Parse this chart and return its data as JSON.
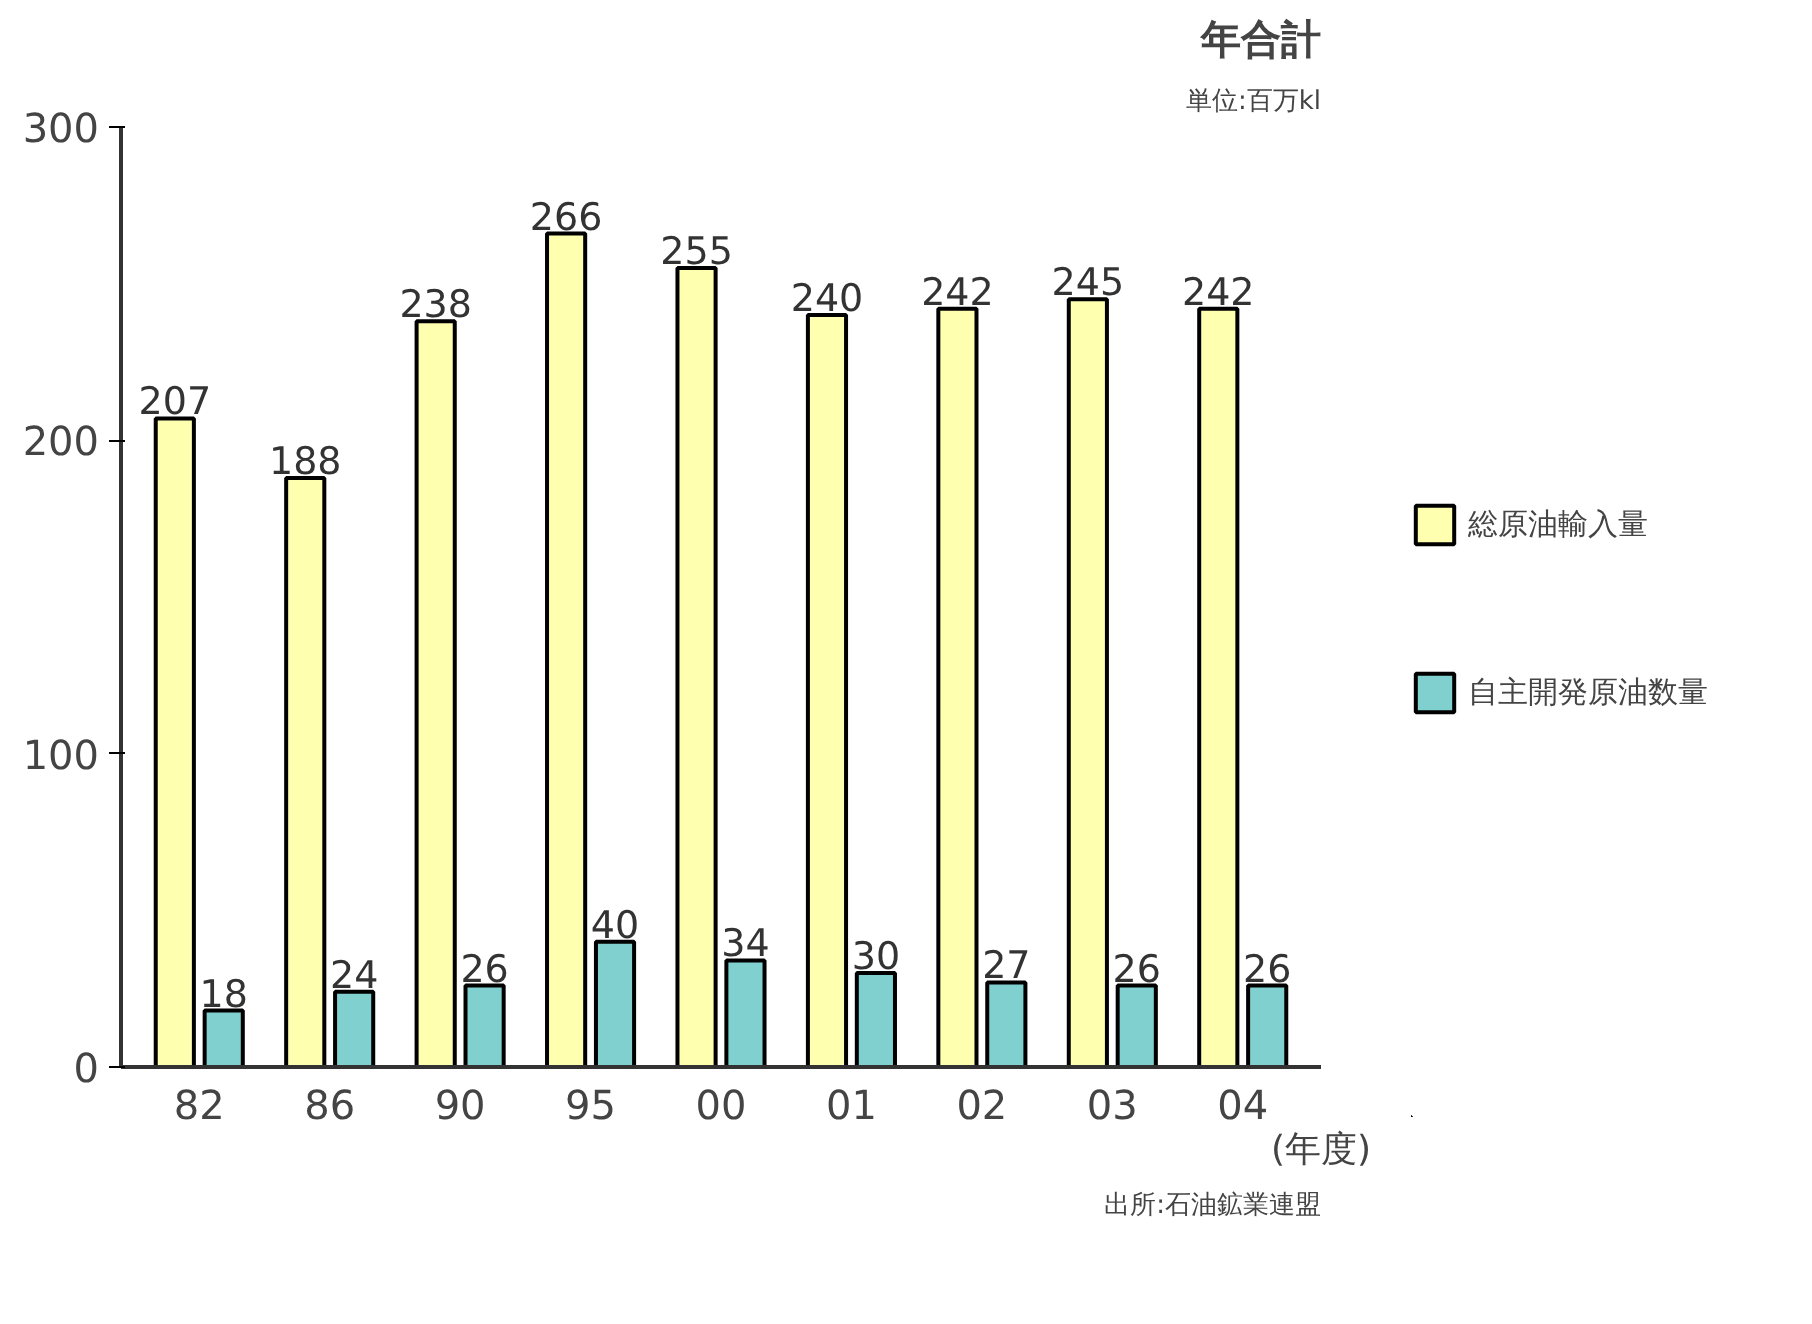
{
  "chart_data": {
    "type": "bar",
    "title": "年合計",
    "subtitle": "単位:百万kl",
    "xlabel": "(年度)",
    "categories": [
      "82",
      "86",
      "90",
      "95",
      "00",
      "01",
      "02",
      "03",
      "04"
    ],
    "series": [
      {
        "name": "総原油輸入量",
        "color": "#ffffb0",
        "values": [
          207,
          188,
          238,
          266,
          255,
          240,
          242,
          245,
          242
        ]
      },
      {
        "name": "自主開発原油数量",
        "color": "#80d0d0",
        "values": [
          18,
          24,
          26,
          40,
          34,
          30,
          27,
          26,
          26
        ]
      }
    ],
    "ylim": [
      0,
      300
    ],
    "yticks": [
      0,
      100,
      200,
      300
    ],
    "grid": false,
    "legend": "right",
    "data_labels": true,
    "annotations": [
      "出所:石油鉱業連盟"
    ]
  }
}
